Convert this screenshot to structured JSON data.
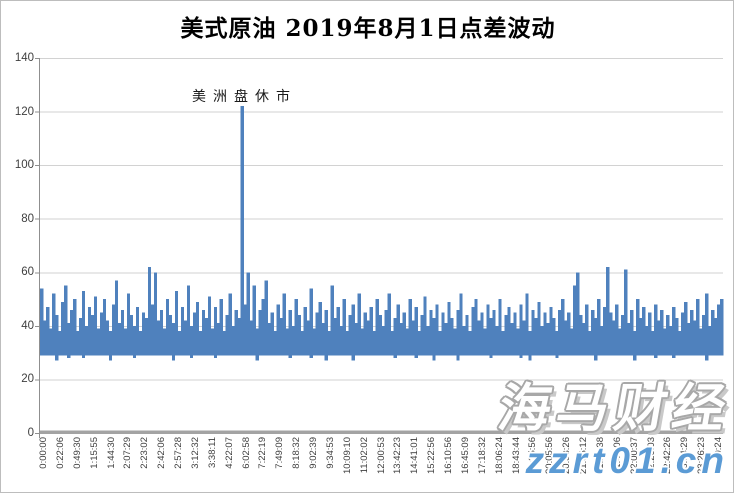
{
  "chart_data": {
    "type": "line",
    "title": "美式原油 2019年8月1日点差波动",
    "xlabel": "",
    "ylabel": "",
    "legend": "none",
    "grid": "horizontal",
    "ylim": [
      0,
      140
    ],
    "y_ticks": [
      0,
      20,
      40,
      60,
      80,
      100,
      120,
      140
    ],
    "x_tick_labels": [
      "0:00:00",
      "0:22:06",
      "0:49:30",
      "1:15:55",
      "1:44:30",
      "2:07:29",
      "2:23:02",
      "2:42:06",
      "2:57:28",
      "3:12:32",
      "3:38:11",
      "4:22:07",
      "6:02:58",
      "7:22:19",
      "7:49:09",
      "8:18:32",
      "9:02:39",
      "9:34:53",
      "10:09:10",
      "11:02:02",
      "12:00:53",
      "13:42:23",
      "14:41:01",
      "15:22:56",
      "16:10:56",
      "16:45:09",
      "17:18:32",
      "18:06:24",
      "18:43:44",
      "19:25:56",
      "20:05:56",
      "20:33:26",
      "21:05:12",
      "21:21:38",
      "21:43:06",
      "22:00:37",
      "22:20:03",
      "22:42:26",
      "23:04:29",
      "23:26:23",
      "23:40:24"
    ],
    "annotation": {
      "text": "美洲盘休市",
      "spike_value": 122,
      "spike_time_between": [
        "4:22:07",
        "6:02:58"
      ]
    },
    "typical_range": [
      29,
      55
    ],
    "column_base": 29,
    "column_tops": [
      54,
      42,
      47,
      39,
      52,
      44,
      38,
      49,
      55,
      41,
      46,
      50,
      38,
      43,
      53,
      40,
      47,
      44,
      51,
      39,
      45,
      50,
      42,
      38,
      48,
      57,
      41,
      46,
      39,
      52,
      44,
      40,
      47,
      38,
      45,
      43,
      62,
      48,
      60,
      42,
      46,
      39,
      50,
      44,
      41,
      53,
      38,
      47,
      42,
      55,
      40,
      45,
      49,
      38,
      46,
      43,
      51,
      39,
      47,
      41,
      50,
      38,
      44,
      52,
      40,
      46,
      43,
      122,
      48,
      60,
      42,
      55,
      39,
      46,
      50,
      57,
      41,
      45,
      38,
      48,
      43,
      52,
      39,
      46,
      40,
      50,
      44,
      38,
      47,
      42,
      54,
      39,
      45,
      49,
      41,
      46,
      38,
      55,
      43,
      47,
      40,
      50,
      38,
      44,
      48,
      41,
      52,
      39,
      45,
      42,
      47,
      38,
      50,
      44,
      40,
      46,
      52,
      38,
      43,
      48,
      41,
      45,
      39,
      50,
      42,
      47,
      38,
      44,
      51,
      40,
      46,
      43,
      48,
      38,
      45,
      41,
      49,
      43,
      39,
      46,
      52,
      40,
      44,
      38,
      47,
      50,
      42,
      45,
      39,
      48,
      43,
      46,
      40,
      50,
      38,
      44,
      47,
      41,
      45,
      39,
      48,
      42,
      52,
      38,
      46,
      43,
      49,
      40,
      45,
      41,
      47,
      43,
      38,
      46,
      50,
      42,
      45,
      39,
      55,
      60,
      44,
      41,
      48,
      38,
      46,
      43,
      50,
      40,
      47,
      62,
      45,
      42,
      48,
      39,
      44,
      61,
      41,
      46,
      38,
      50,
      43,
      47,
      40,
      45,
      38,
      48,
      42,
      46,
      39,
      44,
      40,
      47,
      43,
      38,
      45,
      49,
      41,
      46,
      42,
      50,
      39,
      44,
      52,
      40,
      46,
      43,
      48,
      50
    ],
    "column_low_exceptions": {
      "5": 27,
      "9": 28,
      "14": 28,
      "23": 27,
      "31": 28,
      "44": 27,
      "50": 28,
      "58": 28,
      "72": 27,
      "83": 28,
      "90": 28,
      "95": 27,
      "104": 27,
      "118": 28,
      "125": 28,
      "131": 27,
      "139": 27,
      "150": 28,
      "160": 28,
      "163": 27,
      "172": 28,
      "185": 27,
      "198": 27,
      "205": 28,
      "211": 28,
      "222": 27
    }
  },
  "watermark": {
    "brand": "海马财经",
    "site": "zzrt01.cn"
  },
  "colors": {
    "bar": "#4f81bd",
    "grid": "#d2d2d2",
    "axis_band": "#a3a3a3",
    "axis_line": "#8f8f8f",
    "axis_text": "#3f3f3f",
    "watermark_site_blue": "#5b9bd5"
  }
}
